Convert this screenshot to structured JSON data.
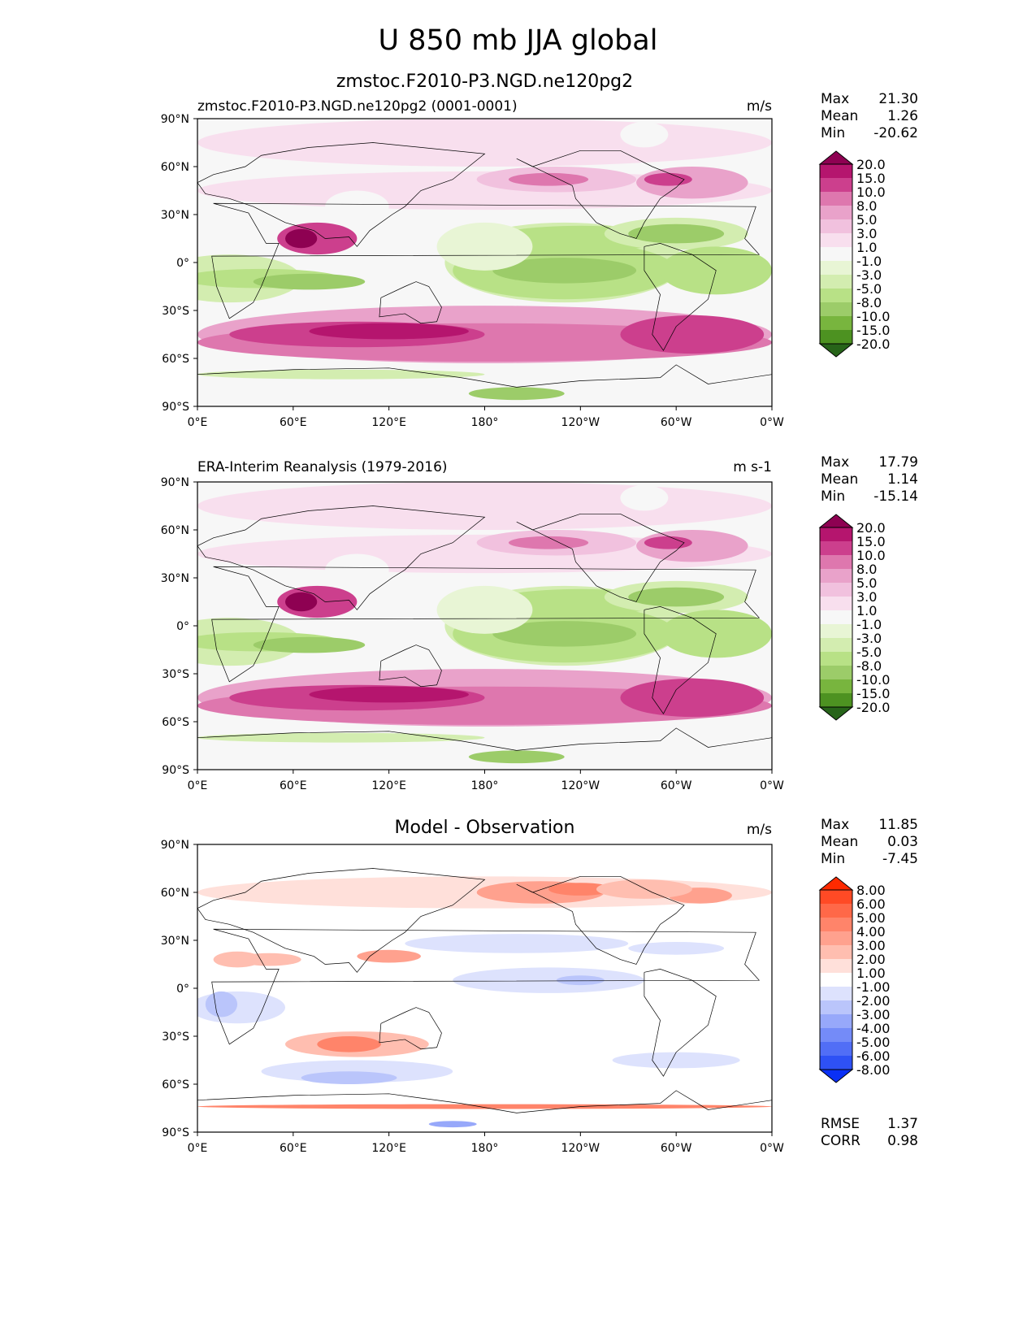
{
  "title": "U 850 mb JJA global",
  "chart_data": {
    "type": "heatmap",
    "title": "U 850 mb JJA global",
    "x_ticks": [
      "0°E",
      "60°E",
      "120°E",
      "180°",
      "120°W",
      "60°W",
      "0°W"
    ],
    "y_ticks": [
      "90°N",
      "60°N",
      "30°N",
      "0°",
      "30°S",
      "60°S",
      "90°S"
    ],
    "xlim": [
      0,
      360
    ],
    "ylim": [
      -90,
      90
    ],
    "panels": [
      {
        "left_title": "zmstoc.F2010-P3.NGD.ne120pg2 (0001-0001)",
        "center_title": "zmstoc.F2010-P3.NGD.ne120pg2",
        "units": "m/s",
        "stats": {
          "Max": "21.30",
          "Mean": "1.26",
          "Min": "-20.62"
        },
        "colorbar_levels": [
          "20.0",
          "15.0",
          "10.0",
          "8.0",
          "5.0",
          "3.0",
          "1.0",
          "-1.0",
          "-3.0",
          "-5.0",
          "-8.0",
          "-10.0",
          "-15.0",
          "-20.0"
        ]
      },
      {
        "left_title": "ERA-Interim Reanalysis (1979-2016)",
        "center_title": "",
        "units": "m s-1",
        "stats": {
          "Max": "17.79",
          "Mean": "1.14",
          "Min": "-15.14"
        },
        "colorbar_levels": [
          "20.0",
          "15.0",
          "10.0",
          "8.0",
          "5.0",
          "3.0",
          "1.0",
          "-1.0",
          "-3.0",
          "-5.0",
          "-8.0",
          "-10.0",
          "-15.0",
          "-20.0"
        ]
      },
      {
        "left_title": "",
        "center_title": "Model - Observation",
        "units": "m/s",
        "stats": {
          "Max": "11.85",
          "Mean": "0.03",
          "Min": "-7.45"
        },
        "colorbar_levels": [
          "8.00",
          "6.00",
          "5.00",
          "4.00",
          "3.00",
          "2.00",
          "1.00",
          "-1.00",
          "-2.00",
          "-3.00",
          "-4.00",
          "-5.00",
          "-6.00",
          "-8.00"
        ],
        "extra_stats": {
          "RMSE": "1.37",
          "CORR": "0.98"
        }
      }
    ]
  },
  "colors": {
    "piyg": [
      "#8e0152",
      "#b5156e",
      "#cc3f8d",
      "#de77ae",
      "#e9a2ca",
      "#f1c1de",
      "#f8dfee",
      "#f7f7f7",
      "#e8f5d5",
      "#d3edb0",
      "#b8e186",
      "#9ccc69",
      "#78b53e",
      "#4d9221",
      "#276419"
    ],
    "diff": [
      "#ff2a00",
      "#ff4a25",
      "#ff6848",
      "#ff846a",
      "#ffa18e",
      "#ffbeb0",
      "#ffe0da",
      "#ffffff",
      "#dde2fd",
      "#bac5fb",
      "#97a8fa",
      "#748bf8",
      "#516ef6",
      "#2e51f5",
      "#0a30f5"
    ]
  }
}
